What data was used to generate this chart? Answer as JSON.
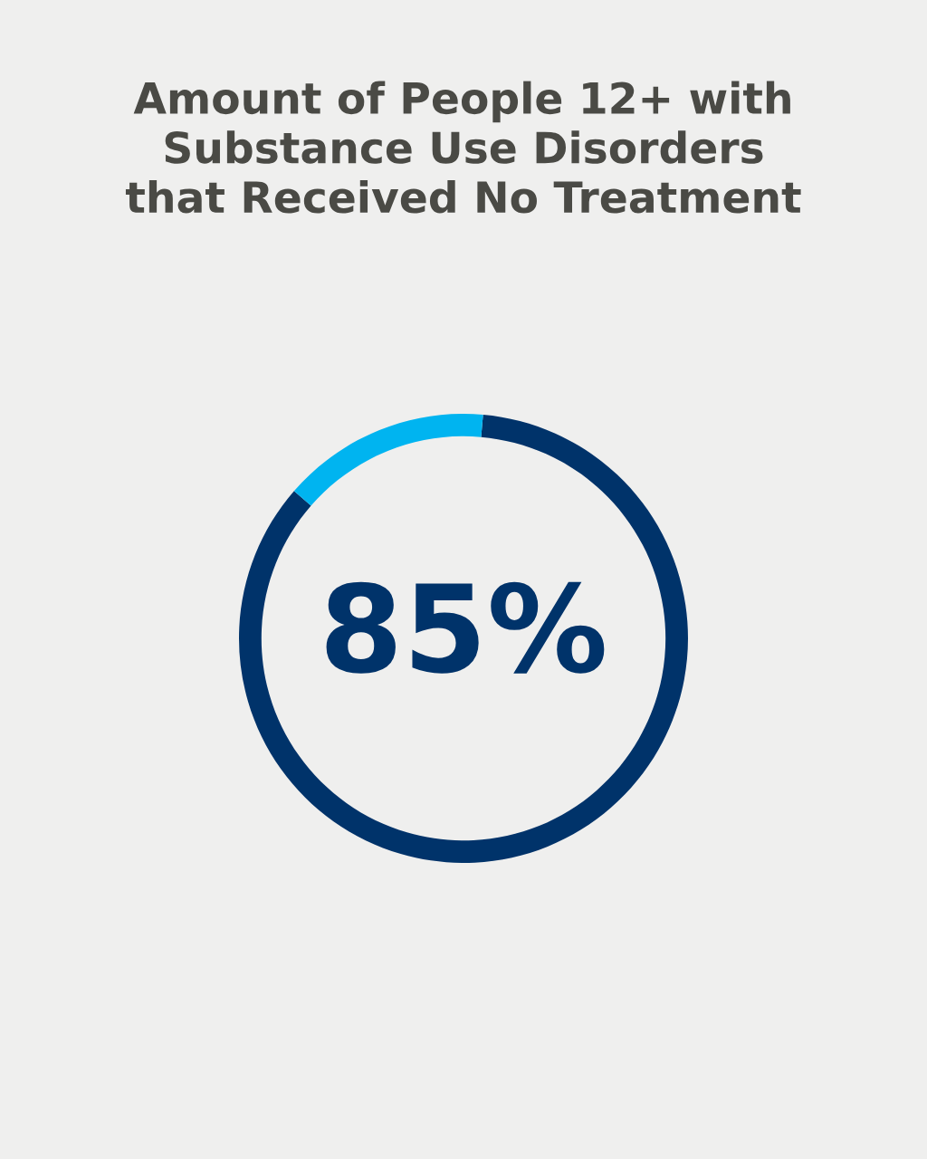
{
  "chart_data": {
    "type": "donut",
    "title": "Amount of People 12+ with\nSubstance Use Disorders\nthat Received No Treatment",
    "categories": [
      null,
      null
    ],
    "values": [
      85,
      15
    ],
    "colors": [
      "#00336a",
      "#00b4f0"
    ],
    "value_labels": [
      "85%",
      null
    ],
    "legend": false
  }
}
